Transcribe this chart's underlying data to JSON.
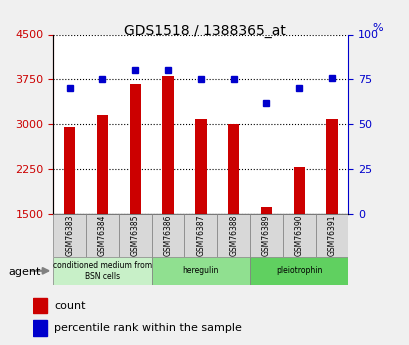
{
  "title": "GDS1518 / 1388365_at",
  "samples": [
    "GSM76383",
    "GSM76384",
    "GSM76385",
    "GSM76386",
    "GSM76387",
    "GSM76388",
    "GSM76389",
    "GSM76390",
    "GSM76391"
  ],
  "counts": [
    2950,
    3150,
    3680,
    3800,
    3080,
    3010,
    1620,
    2280,
    3080
  ],
  "percentiles": [
    70,
    75,
    80,
    80,
    75,
    75,
    62,
    70,
    76
  ],
  "ylim_left": [
    1500,
    4500
  ],
  "ylim_right": [
    0,
    100
  ],
  "yticks_left": [
    1500,
    2250,
    3000,
    3750,
    4500
  ],
  "yticks_right": [
    0,
    25,
    50,
    75,
    100
  ],
  "groups": [
    {
      "label": "conditioned medium from\nBSN cells",
      "start": 0,
      "end": 3,
      "color": "#c8f0c8"
    },
    {
      "label": "heregulin",
      "start": 3,
      "end": 6,
      "color": "#90e090"
    },
    {
      "label": "pleiotrophin",
      "start": 6,
      "end": 9,
      "color": "#60d060"
    }
  ],
  "bar_color": "#cc0000",
  "dot_color": "#0000cc",
  "grid_color": "#000000",
  "background_color": "#e8e8e8",
  "plot_bg_color": "#ffffff",
  "left_axis_color": "#cc0000",
  "right_axis_color": "#0000cc"
}
